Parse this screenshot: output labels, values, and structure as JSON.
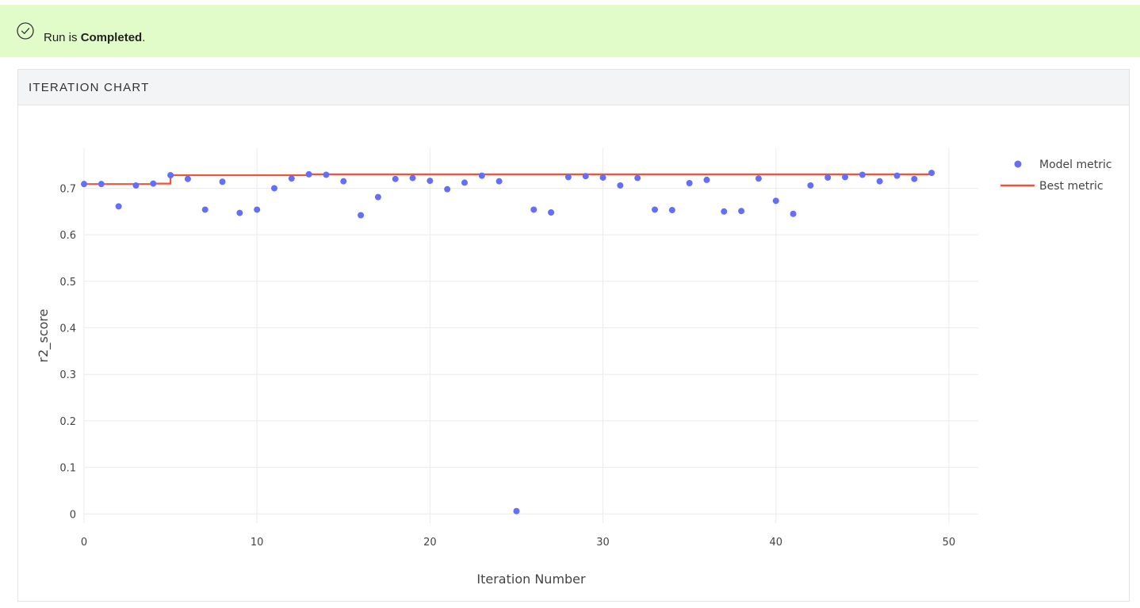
{
  "status": {
    "prefix": "Run is ",
    "state": "Completed",
    "suffix": ".",
    "icon": "check-circle-icon"
  },
  "panel": {
    "title": "ITERATION CHART"
  },
  "colors": {
    "banner": "#e2fcc9",
    "point": "#636efa",
    "best_line": "#ef553b"
  },
  "chart_data": {
    "type": "scatter",
    "xlabel": "Iteration Number",
    "ylabel": "r2_score",
    "xlim": [
      0,
      51.7
    ],
    "ylim": [
      -0.02,
      0.786
    ],
    "xticks": [
      0,
      10,
      20,
      30,
      40,
      50
    ],
    "yticks": [
      0,
      0.1,
      0.2,
      0.3,
      0.4,
      0.5,
      0.6,
      0.7
    ],
    "ytick_labels": [
      "0",
      "0.1",
      "0.2",
      "0.3",
      "0.4",
      "0.5",
      "0.6",
      "0.7"
    ],
    "legend_position": "top-right",
    "series": [
      {
        "name": "Model metric",
        "kind": "markers",
        "x": [
          0,
          1,
          2,
          3,
          4,
          5,
          6,
          7,
          8,
          9,
          10,
          11,
          12,
          13,
          14,
          15,
          16,
          17,
          18,
          19,
          20,
          21,
          22,
          23,
          24,
          25,
          26,
          27,
          28,
          29,
          30,
          31,
          32,
          33,
          34,
          35,
          36,
          37,
          38,
          39,
          40,
          41,
          42,
          43,
          44,
          45,
          46,
          47,
          48,
          49
        ],
        "values": [
          0.709,
          0.709,
          0.661,
          0.706,
          0.71,
          0.728,
          0.72,
          0.654,
          0.714,
          0.647,
          0.654,
          0.7,
          0.721,
          0.73,
          0.729,
          0.715,
          0.642,
          0.681,
          0.72,
          0.722,
          0.716,
          0.698,
          0.712,
          0.727,
          0.715,
          0.006,
          0.654,
          0.648,
          0.724,
          0.726,
          0.723,
          0.706,
          0.722,
          0.654,
          0.653,
          0.711,
          0.718,
          0.65,
          0.651,
          0.721,
          0.673,
          0.645,
          0.706,
          0.723,
          0.724,
          0.729,
          0.715,
          0.727,
          0.72,
          0.733
        ]
      },
      {
        "name": "Best metric",
        "kind": "step-line",
        "x": [
          0,
          1,
          2,
          3,
          4,
          5,
          6,
          7,
          8,
          9,
          10,
          11,
          12,
          13,
          14,
          15,
          16,
          17,
          18,
          19,
          20,
          21,
          22,
          23,
          24,
          25,
          26,
          27,
          28,
          29,
          30,
          31,
          32,
          33,
          34,
          35,
          36,
          37,
          38,
          39,
          40,
          41,
          42,
          43,
          44,
          45,
          46,
          47,
          48,
          49
        ],
        "values": [
          0.709,
          0.709,
          0.709,
          0.709,
          0.71,
          0.728,
          0.728,
          0.728,
          0.728,
          0.728,
          0.728,
          0.728,
          0.728,
          0.73,
          0.73,
          0.73,
          0.73,
          0.73,
          0.73,
          0.73,
          0.73,
          0.73,
          0.73,
          0.73,
          0.73,
          0.73,
          0.73,
          0.73,
          0.73,
          0.73,
          0.73,
          0.73,
          0.73,
          0.73,
          0.73,
          0.73,
          0.73,
          0.73,
          0.73,
          0.73,
          0.73,
          0.73,
          0.73,
          0.73,
          0.73,
          0.73,
          0.73,
          0.73,
          0.73,
          0.733
        ]
      }
    ]
  }
}
